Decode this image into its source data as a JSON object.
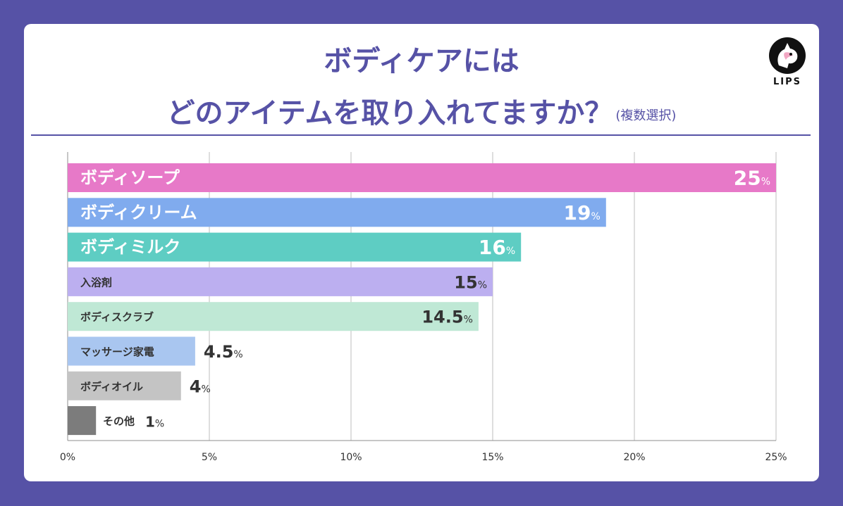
{
  "header": {
    "title_line1": "ボディケアには",
    "title_line2": "どのアイテムを取り入れてますか？",
    "note": "(複数選択)",
    "logo_text": "LIPS"
  },
  "colors": {
    "background": "#5652a6",
    "accent": "#5652a6"
  },
  "chart_data": {
    "type": "bar",
    "orientation": "horizontal",
    "categories": [
      "ボディソープ",
      "ボディクリーム",
      "ボディミルク",
      "入浴剤",
      "ボディスクラブ",
      "マッサージ家電",
      "ボディオイル",
      "その他"
    ],
    "values": [
      25,
      19,
      16,
      15,
      14.5,
      4.5,
      4,
      1
    ],
    "value_labels": [
      "25",
      "19",
      "16",
      "15",
      "14.5",
      "4.5",
      "4",
      "1"
    ],
    "unit": "%",
    "bar_colors": [
      "#e779c8",
      "#80abee",
      "#5ecdc3",
      "#bcaff0",
      "#bfe8d5",
      "#a9c6f0",
      "#c4c4c4",
      "#7c7c7c"
    ],
    "xlim": [
      0,
      25
    ],
    "xticks": [
      0,
      5,
      10,
      15,
      20,
      25
    ],
    "xtick_labels": [
      "0%",
      "5%",
      "10%",
      "15%",
      "20%",
      "25%"
    ],
    "grid": true
  }
}
